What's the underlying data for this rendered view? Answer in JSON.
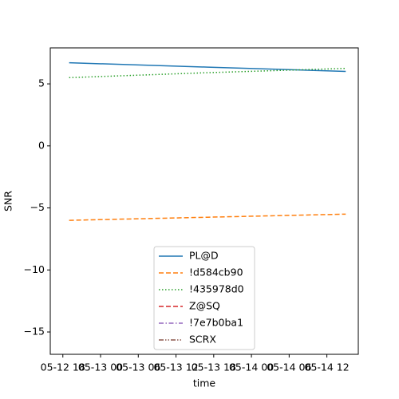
{
  "chart_data": {
    "type": "line",
    "xlabel": "time",
    "ylabel": "SNR",
    "x": [
      "05-12 19",
      "05-13 17",
      "05-14 15"
    ],
    "series": [
      {
        "name": "PL@D",
        "color": "#1f77b4",
        "dash": "solid",
        "values": [
          6.7,
          6.35,
          6.0
        ]
      },
      {
        "name": "!d584cb90",
        "color": "#ff7f0e",
        "dash": "dashed",
        "values": [
          -6.0,
          -5.75,
          -5.5
        ]
      },
      {
        "name": "!435978d0",
        "color": "#2ca02c",
        "dash": "dotted",
        "values": [
          5.5,
          5.9,
          6.25
        ]
      },
      {
        "name": "Z@SQ",
        "color": "#d62728",
        "dash": "dashed",
        "values": [
          null,
          null,
          null
        ]
      },
      {
        "name": "!7e7b0ba1",
        "color": "#9467bd",
        "dash": "dashdot",
        "values": [
          null,
          null,
          null
        ]
      },
      {
        "name": "SCRX",
        "color": "#8c564b",
        "dash": "dashdotdot",
        "values": [
          null,
          null,
          null
        ]
      }
    ],
    "xlim": [
      "05-12 16",
      "05-14 17"
    ],
    "xticks": [
      "05-12 18",
      "05-13 00",
      "05-13 06",
      "05-13 12",
      "05-13 18",
      "05-14 00",
      "05-14 06",
      "05-14 12"
    ],
    "ylim": [
      -16.8,
      7.9
    ],
    "yticks": [
      {
        "value": -15,
        "label": "−15"
      },
      {
        "value": -10,
        "label": "−10"
      },
      {
        "value": -5,
        "label": "−5"
      },
      0,
      5
    ],
    "legend": "lower center",
    "grid": false
  }
}
